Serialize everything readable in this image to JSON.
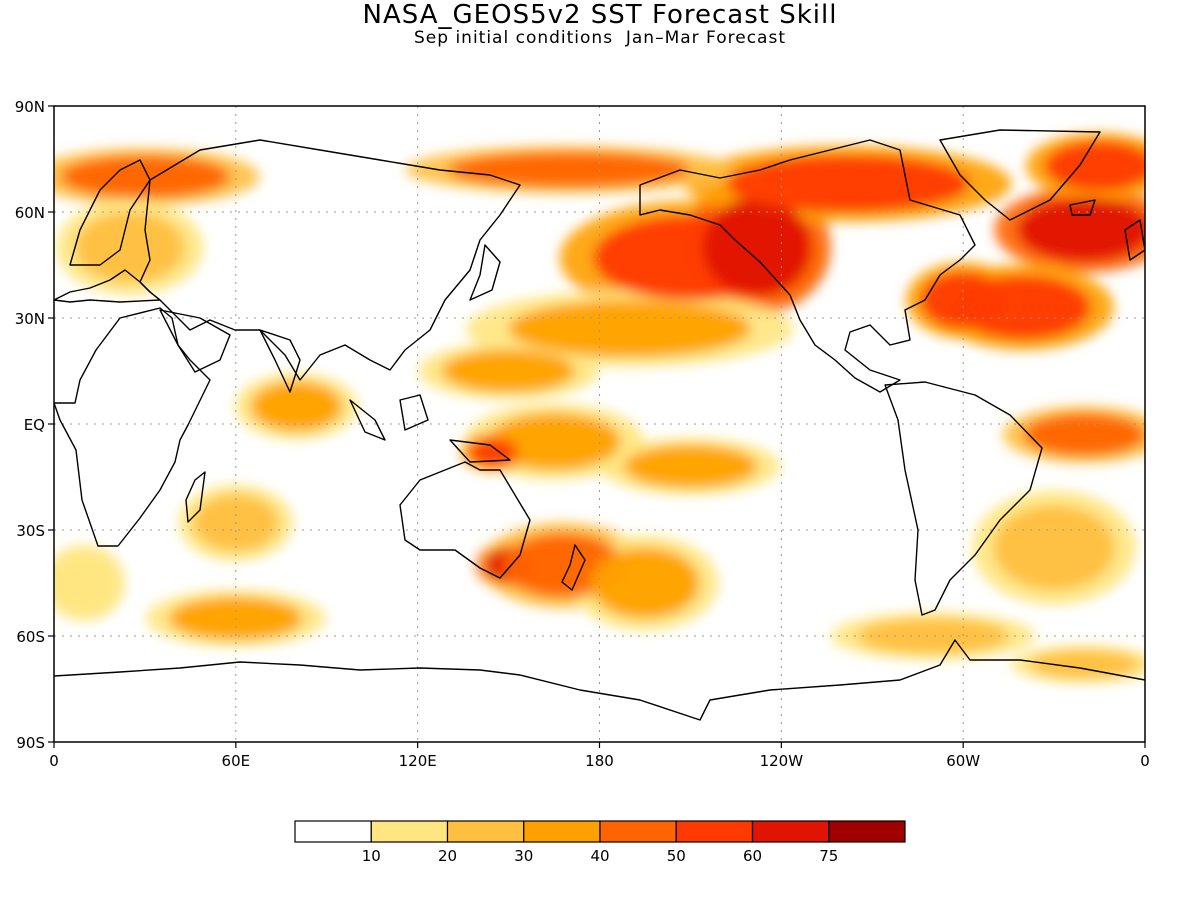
{
  "title": "NASA_GEOS5v2 SST Forecast Skill",
  "subtitle": "Sep initial conditions  Jan–Mar Forecast",
  "map": {
    "lon_range": [
      0,
      360
    ],
    "lat_range": [
      -90,
      90
    ],
    "grid": true,
    "lat_ticks": [
      {
        "value": 90,
        "label": "90N"
      },
      {
        "value": 60,
        "label": "60N"
      },
      {
        "value": 30,
        "label": "30N"
      },
      {
        "value": 0,
        "label": "EQ"
      },
      {
        "value": -30,
        "label": "30S"
      },
      {
        "value": -60,
        "label": "60S"
      },
      {
        "value": -90,
        "label": "90S"
      }
    ],
    "lon_ticks": [
      {
        "value": 0,
        "label": "0"
      },
      {
        "value": 60,
        "label": "60E"
      },
      {
        "value": 120,
        "label": "120E"
      },
      {
        "value": 180,
        "label": "180"
      },
      {
        "value": 240,
        "label": "120W"
      },
      {
        "value": 300,
        "label": "60W"
      },
      {
        "value": 360,
        "label": "0"
      }
    ]
  },
  "colorbar": {
    "colors": [
      "#ffffff",
      "#ffe680",
      "#ffbf40",
      "#ffa000",
      "#ff6400",
      "#ff3a00",
      "#e01400",
      "#a00000"
    ],
    "labels": [
      "10",
      "20",
      "30",
      "40",
      "50",
      "60",
      "75"
    ]
  },
  "skill_regions": [
    {
      "lon": 210,
      "lat": 47,
      "rx": 32,
      "ry": 12,
      "level": 5
    },
    {
      "lon": 232,
      "lat": 50,
      "rx": 18,
      "ry": 14,
      "level": 6
    },
    {
      "lon": 340,
      "lat": 55,
      "rx": 22,
      "ry": 9,
      "level": 6
    },
    {
      "lon": 320,
      "lat": 33,
      "rx": 22,
      "ry": 9,
      "level": 5
    },
    {
      "lon": 300,
      "lat": 35,
      "rx": 14,
      "ry": 8,
      "level": 5
    },
    {
      "lon": 262,
      "lat": 68,
      "rx": 40,
      "ry": 8,
      "level": 5
    },
    {
      "lon": 345,
      "lat": 73,
      "rx": 18,
      "ry": 7,
      "level": 5
    },
    {
      "lon": 170,
      "lat": 72,
      "rx": 40,
      "ry": 5,
      "level": 4
    },
    {
      "lon": 30,
      "lat": 70,
      "rx": 28,
      "ry": 6,
      "level": 4
    },
    {
      "lon": 190,
      "lat": 27,
      "rx": 40,
      "ry": 8,
      "level": 3
    },
    {
      "lon": 150,
      "lat": 15,
      "rx": 22,
      "ry": 6,
      "level": 3
    },
    {
      "lon": 210,
      "lat": -12,
      "rx": 22,
      "ry": 6,
      "level": 3
    },
    {
      "lon": 165,
      "lat": -5,
      "rx": 22,
      "ry": 8,
      "level": 3
    },
    {
      "lon": 145,
      "lat": -8,
      "rx": 8,
      "ry": 4,
      "level": 5
    },
    {
      "lon": 150,
      "lat": -40,
      "rx": 8,
      "ry": 5,
      "level": 6
    },
    {
      "lon": 168,
      "lat": -40,
      "rx": 20,
      "ry": 9,
      "level": 4
    },
    {
      "lon": 195,
      "lat": -45,
      "rx": 18,
      "ry": 10,
      "level": 3
    },
    {
      "lon": 60,
      "lat": -55,
      "rx": 22,
      "ry": 6,
      "level": 3
    },
    {
      "lon": 80,
      "lat": 5,
      "rx": 15,
      "ry": 7,
      "level": 3
    },
    {
      "lon": 60,
      "lat": -28,
      "rx": 14,
      "ry": 8,
      "level": 2
    },
    {
      "lon": 340,
      "lat": -3,
      "rx": 20,
      "ry": 6,
      "level": 4
    },
    {
      "lon": 330,
      "lat": -35,
      "rx": 20,
      "ry": 12,
      "level": 2
    },
    {
      "lon": 290,
      "lat": -60,
      "rx": 25,
      "ry": 5,
      "level": 2
    },
    {
      "lon": 340,
      "lat": -68,
      "rx": 18,
      "ry": 4,
      "level": 2
    },
    {
      "lon": 10,
      "lat": -45,
      "rx": 10,
      "ry": 8,
      "level": 1
    },
    {
      "lon": 25,
      "lat": 50,
      "rx": 18,
      "ry": 10,
      "level": 2
    }
  ]
}
